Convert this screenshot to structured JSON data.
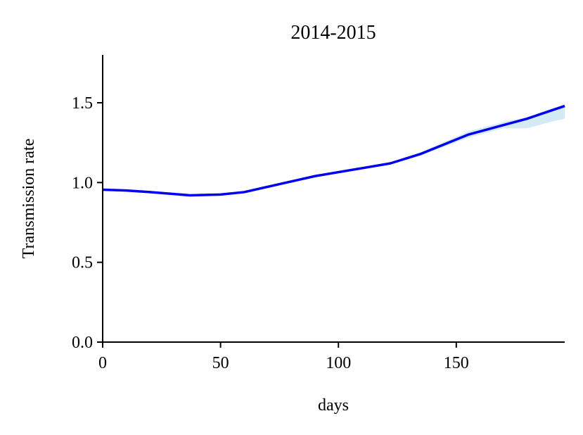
{
  "chart_data": {
    "type": "line",
    "title": "2014-2015",
    "xlabel": "days",
    "ylabel": "Transmission rate",
    "x": [
      0,
      10,
      20,
      37,
      50,
      60,
      75,
      90,
      110,
      122,
      135,
      155,
      170,
      180,
      190,
      196
    ],
    "series": [
      {
        "color": "#0000ee",
        "values": [
          0.955,
          0.95,
          0.94,
          0.92,
          0.925,
          0.94,
          0.99,
          1.04,
          1.09,
          1.12,
          1.18,
          1.3,
          1.36,
          1.4,
          1.45,
          1.48
        ]
      }
    ],
    "band": {
      "color": "#d4ebf5",
      "lower": [
        0.95,
        0.945,
        0.935,
        0.915,
        0.92,
        0.935,
        0.985,
        1.035,
        1.085,
        1.115,
        1.17,
        1.28,
        1.34,
        1.34,
        1.38,
        1.4
      ],
      "upper": [
        0.96,
        0.955,
        0.945,
        0.925,
        0.93,
        0.945,
        0.995,
        1.045,
        1.095,
        1.125,
        1.19,
        1.32,
        1.38,
        1.41,
        1.46,
        1.49
      ]
    },
    "xlim": [
      0,
      196
    ],
    "ylim": [
      0,
      1.8
    ],
    "xticks": [
      0,
      50,
      100,
      150
    ],
    "yticks": [
      {
        "value": 0,
        "label": "0.0"
      },
      0.5,
      {
        "value": 1,
        "label": "1.0"
      },
      1.5
    ]
  }
}
